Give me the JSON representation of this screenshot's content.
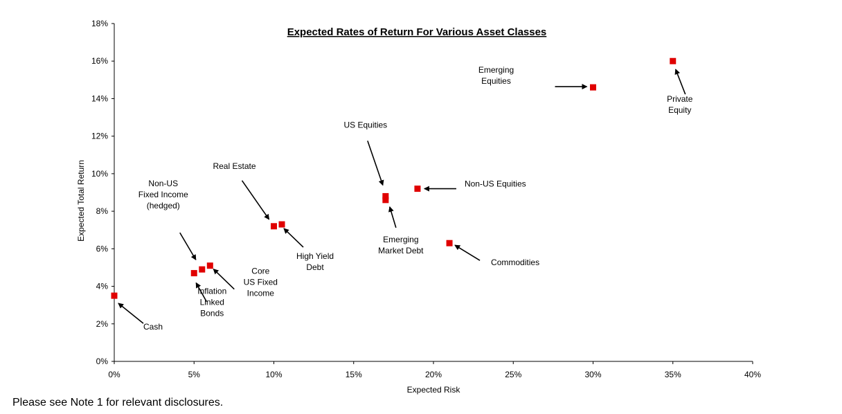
{
  "chart_data": {
    "type": "scatter",
    "title": "Expected Rates of Return For Various Asset Classes",
    "xlabel": "Expected Risk",
    "ylabel": "Expected Total Return",
    "xlim": [
      0,
      40
    ],
    "ylim": [
      0,
      18
    ],
    "x_ticks": [
      0,
      5,
      10,
      15,
      20,
      25,
      30,
      35,
      40
    ],
    "y_ticks": [
      0,
      2,
      4,
      6,
      8,
      10,
      12,
      14,
      16,
      18
    ],
    "tick_suffix": "%",
    "marker_color": "#e00000",
    "grid": false,
    "points": [
      {
        "name": "Cash",
        "x": 0,
        "y": 3.5,
        "label": [
          "Cash"
        ]
      },
      {
        "name": "Inflation Linked Bonds",
        "x": 5.0,
        "y": 4.7,
        "label": [
          "Inflation",
          "Linked",
          "Bonds"
        ]
      },
      {
        "name": "Non-US Fixed Income (hedged)",
        "x": 5.5,
        "y": 4.9,
        "label": [
          "Non-US",
          "Fixed Income",
          "(hedged)"
        ]
      },
      {
        "name": "Core US Fixed Income",
        "x": 6.0,
        "y": 5.1,
        "label": [
          "Core",
          "US Fixed",
          "Income"
        ]
      },
      {
        "name": "Real Estate",
        "x": 10.0,
        "y": 7.2,
        "label": [
          "Real Estate"
        ]
      },
      {
        "name": "High Yield Debt",
        "x": 10.5,
        "y": 7.3,
        "label": [
          "High Yield",
          "Debt"
        ]
      },
      {
        "name": "US Equities",
        "x": 17.0,
        "y": 8.8,
        "label": [
          "US Equities"
        ]
      },
      {
        "name": "Emerging Market Debt",
        "x": 17.0,
        "y": 8.6,
        "label": [
          "Emerging",
          "Market Debt"
        ]
      },
      {
        "name": "Non-US Equities",
        "x": 19.0,
        "y": 9.2,
        "label": [
          "Non-US Equities"
        ]
      },
      {
        "name": "Commodities",
        "x": 21.0,
        "y": 6.3,
        "label": [
          "Commodities"
        ]
      },
      {
        "name": "Emerging Equities",
        "x": 30.0,
        "y": 14.6,
        "label": [
          "Emerging",
          "Equities"
        ]
      },
      {
        "name": "Private Equity",
        "x": 35.0,
        "y": 16.0,
        "label": [
          "Private",
          "Equity"
        ]
      }
    ]
  },
  "footnote": "Please see Note 1 for relevant disclosures."
}
